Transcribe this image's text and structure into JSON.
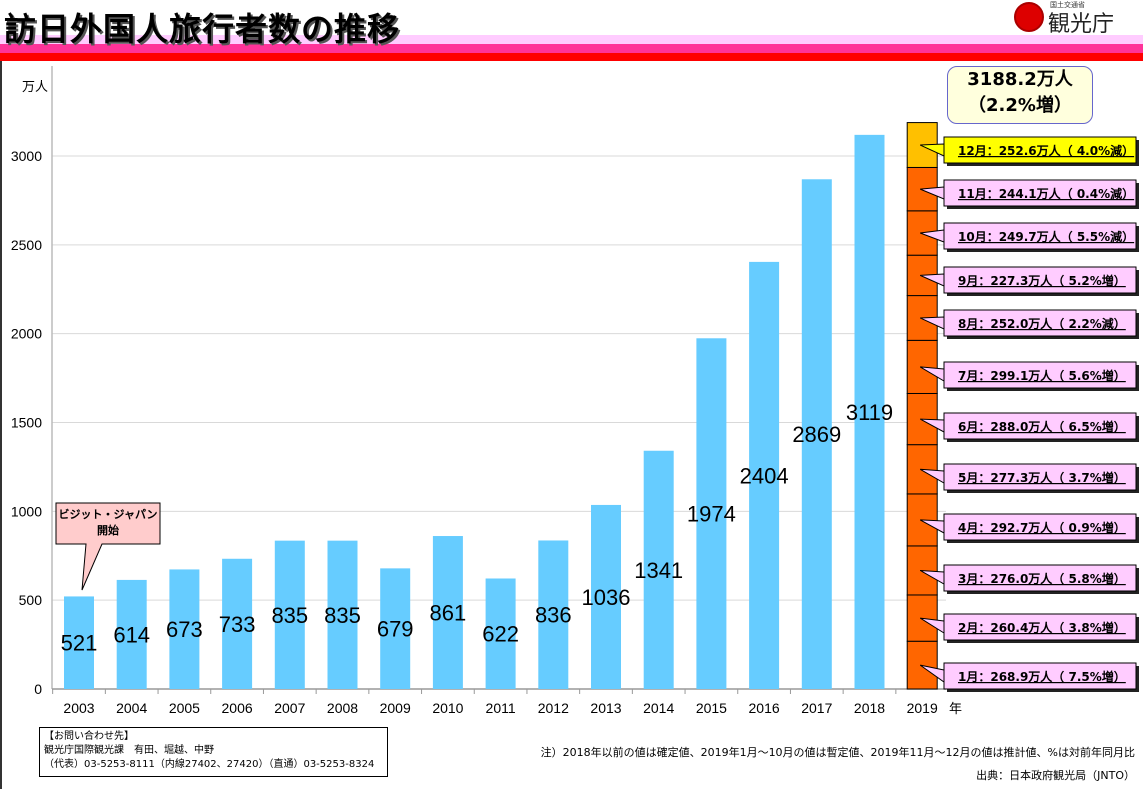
{
  "header": {
    "title": "訪日外国人旅行者数の推移",
    "logo_small": "国土交通省",
    "logo_big": "観光庁"
  },
  "total_box": {
    "line1": "3188.2万人",
    "line2": "（2.2%増）"
  },
  "annotation": {
    "line1": "ビジット・ジャパン",
    "line2": "開始"
  },
  "contact": {
    "line1": "【お問い合わせ先】",
    "line2": "観光庁国際観光課　有田、堀越、中野",
    "line3": "（代表）03-5253-8111（内線27402、27420）（直通）03-5253-8324"
  },
  "note": "注）2018年以前の値は確定値、2019年1月～10月の値は暫定値、2019年11月～12月の値は推計値、%は対前年同月比",
  "source": "出典：日本政府観光局（JNTO）",
  "chart_data": {
    "type": "bar",
    "ylabel": "万人",
    "xunit": "年",
    "ylim": [
      0,
      3500
    ],
    "yticks": [
      0,
      500,
      1000,
      1500,
      2000,
      2500,
      3000
    ],
    "grid": true,
    "categories": [
      "2003",
      "2004",
      "2005",
      "2006",
      "2007",
      "2008",
      "2009",
      "2010",
      "2011",
      "2012",
      "2013",
      "2014",
      "2015",
      "2016",
      "2017",
      "2018",
      "2019"
    ],
    "values": [
      521,
      614,
      673,
      733,
      835,
      835,
      679,
      861,
      622,
      836,
      1036,
      1341,
      1974,
      2404,
      2869,
      3119,
      null
    ],
    "bar_color": "#66ccff",
    "stacked_2019": {
      "colors": {
        "estimate": "#ffc000",
        "provisional": "#ff6600"
      },
      "months": [
        {
          "label": "1月：268.9万人（ 7.5%増）",
          "value": 268.9
        },
        {
          "label": "2月：260.4万人（ 3.8%増）",
          "value": 260.4
        },
        {
          "label": "3月：276.0万人（ 5.8%増）",
          "value": 276.0
        },
        {
          "label": "4月：292.7万人（ 0.9%増）",
          "value": 292.7
        },
        {
          "label": "5月：277.3万人（ 3.7%増）",
          "value": 277.3
        },
        {
          "label": "6月：288.0万人（ 6.5%増）",
          "value": 288.0
        },
        {
          "label": "7月：299.1万人（ 5.6%増）",
          "value": 299.1
        },
        {
          "label": "8月：252.0万人（ 2.2%減）",
          "value": 252.0
        },
        {
          "label": "9月：227.3万人（ 5.2%増）",
          "value": 227.3
        },
        {
          "label": "10月：249.7万人（ 5.5%減）",
          "value": 249.7
        },
        {
          "label": "11月：244.1万人（ 0.4%減）",
          "value": 244.1
        },
        {
          "label": "12月：252.6万人（ 4.0%減）",
          "value": 252.6,
          "highlight": "#ffff00"
        }
      ]
    }
  }
}
